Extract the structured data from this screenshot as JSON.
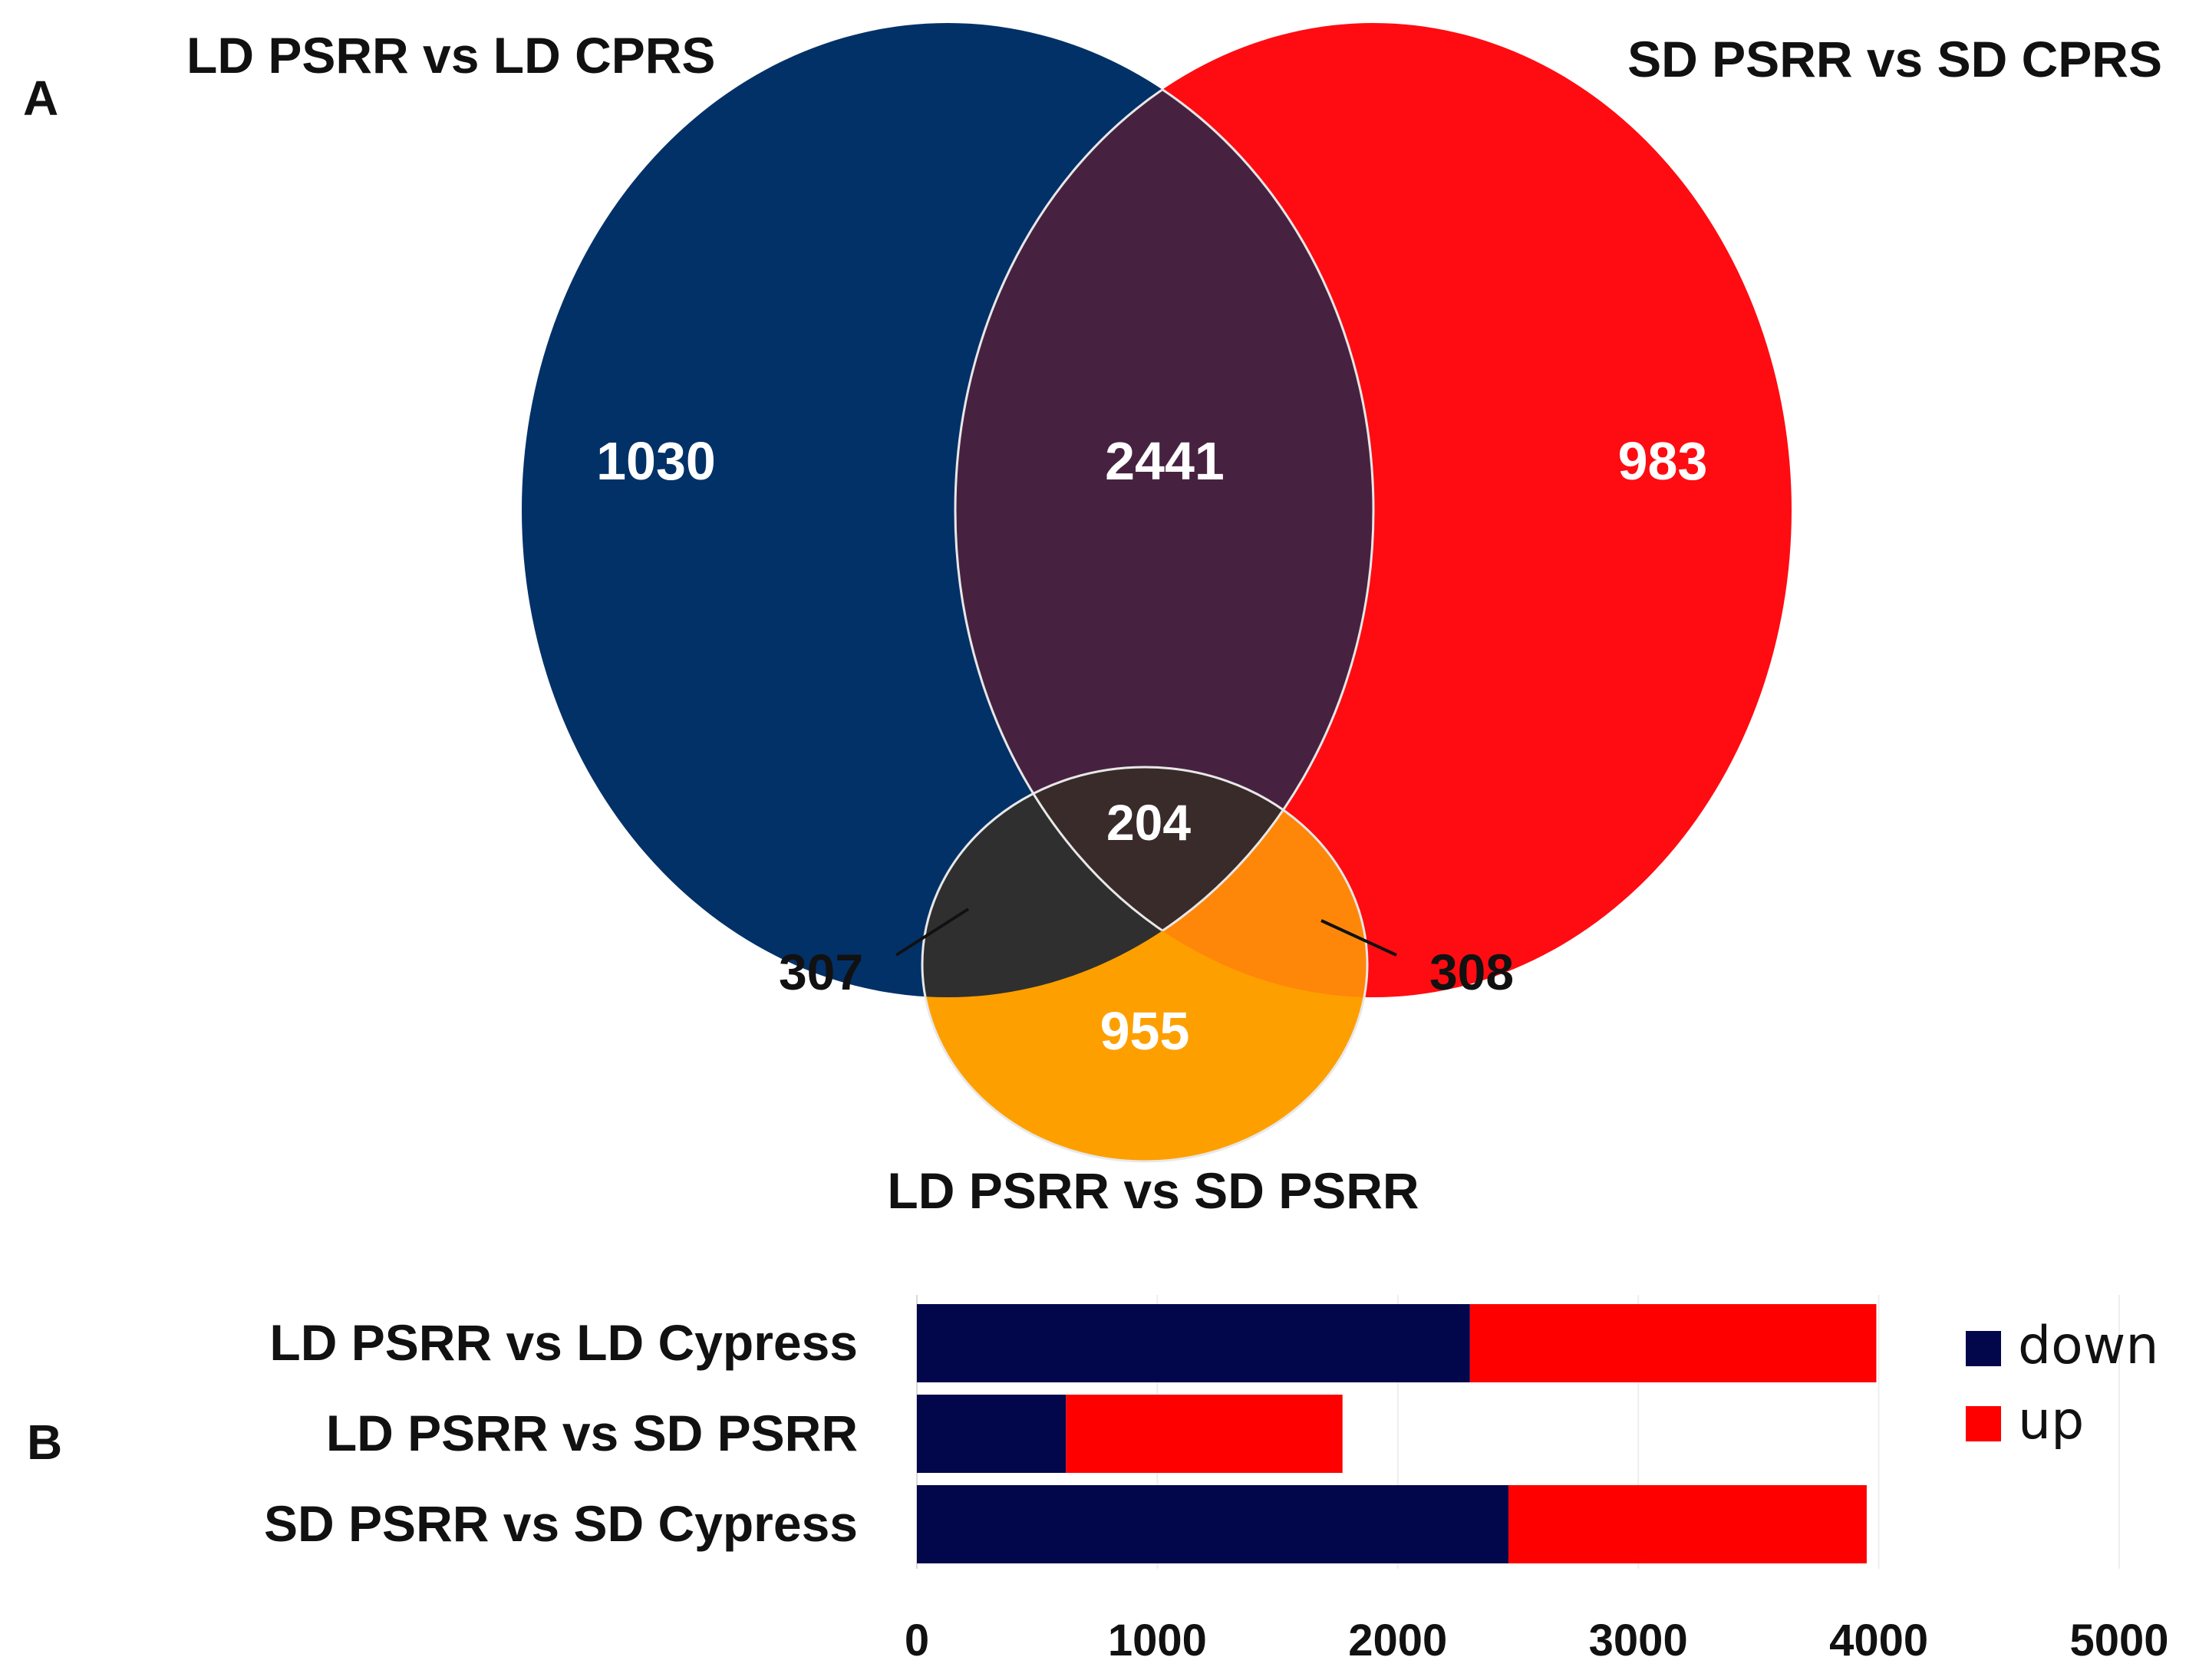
{
  "panel_labels": {
    "a": "A",
    "b": "B"
  },
  "chart_data": [
    {
      "type": "venn",
      "sets": [
        {
          "name": "LD PSRR vs LD CPRS",
          "color": "#023168"
        },
        {
          "name": "SD PSRR vs SD CPRS",
          "color": "#fe0c12"
        },
        {
          "name": "LD PSRR vs SD PSRR",
          "color": "#fe9f00"
        }
      ],
      "region_colors": {
        "ld_sd_cprs_overlap": "#472240",
        "all_three": "#382b2a",
        "ld_cprs_and_ld_sd_psrr": "#2f2f2f",
        "sd_cprs_and_ld_sd_psrr": "#fe8709"
      },
      "regions": {
        "ld_cprs_only": "1030",
        "ld_sd_cprs_overlap": "2441",
        "sd_cprs_only": "983",
        "all_three": "204",
        "ld_cprs_and_ld_sd_psrr": "307",
        "sd_cprs_and_ld_sd_psrr": "308",
        "ld_sd_psrr_only": "955"
      }
    },
    {
      "type": "bar",
      "orientation": "horizontal",
      "stacked": true,
      "categories": [
        "LD PSRR vs LD Cypress",
        "LD PSRR vs SD PSRR",
        "SD PSRR vs SD Cypress"
      ],
      "series": [
        {
          "name": "down",
          "color": "#02064b",
          "values": [
            2300,
            620,
            2460
          ]
        },
        {
          "name": "up",
          "color": "#fe0000",
          "values": [
            1690,
            1150,
            1490
          ]
        }
      ],
      "xlim": [
        0,
        5000
      ],
      "xticks": [
        "0",
        "1000",
        "2000",
        "3000",
        "4000",
        "5000"
      ],
      "grid": true,
      "legend": "right"
    }
  ]
}
